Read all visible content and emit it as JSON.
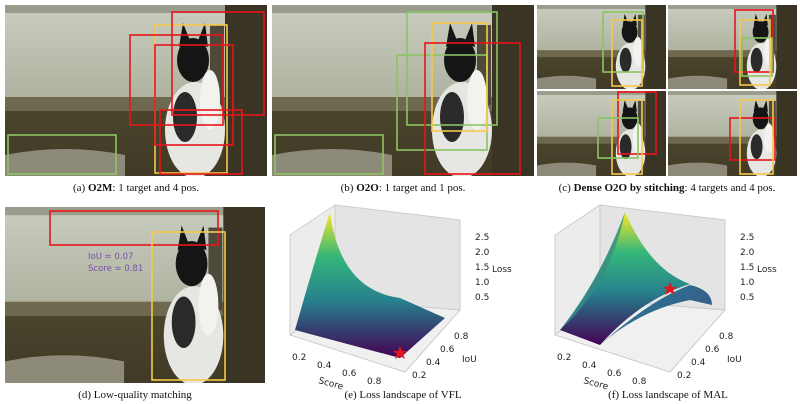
{
  "panels": [
    {
      "caption": {
        "label": "(a)",
        "bold": "O2M",
        "text": ": 1 target and 4 pos."
      }
    },
    {
      "caption": {
        "label": "(b)",
        "bold": "O2O",
        "text": ": 1 target and 1 pos."
      }
    },
    {
      "caption": {
        "label": "(c)",
        "bold": "Dense O2O by stitching",
        "text": ": 4 targets and 4 pos."
      }
    },
    {
      "caption": {
        "label": "(d)",
        "text": "Low-quality matching"
      },
      "annotations": [
        "IoU    = 0.07",
        "Score = 0.81"
      ]
    },
    {
      "caption": {
        "label": "(e)",
        "text": "Loss landscape of VFL"
      },
      "plot": {
        "x_label": "Score",
        "y_label": "IoU",
        "z_label": "Loss",
        "x_ticks": [
          "0.2",
          "0.4",
          "0.6",
          "0.8"
        ],
        "y_ticks": [
          "0.2",
          "0.4",
          "0.6",
          "0.8"
        ],
        "z_ticks": [
          "0.5",
          "1.0",
          "1.5",
          "2.0",
          "2.5"
        ]
      }
    },
    {
      "caption": {
        "label": "(f)",
        "text": "Loss landscape of MAL"
      },
      "plot": {
        "x_label": "Score",
        "y_label": "IoU",
        "z_label": "Loss",
        "x_ticks": [
          "0.2",
          "0.4",
          "0.6",
          "0.8"
        ],
        "y_ticks": [
          "0.2",
          "0.4",
          "0.6",
          "0.8"
        ],
        "z_ticks": [
          "0.5",
          "1.0",
          "1.5",
          "2.0",
          "2.5"
        ]
      }
    }
  ]
}
